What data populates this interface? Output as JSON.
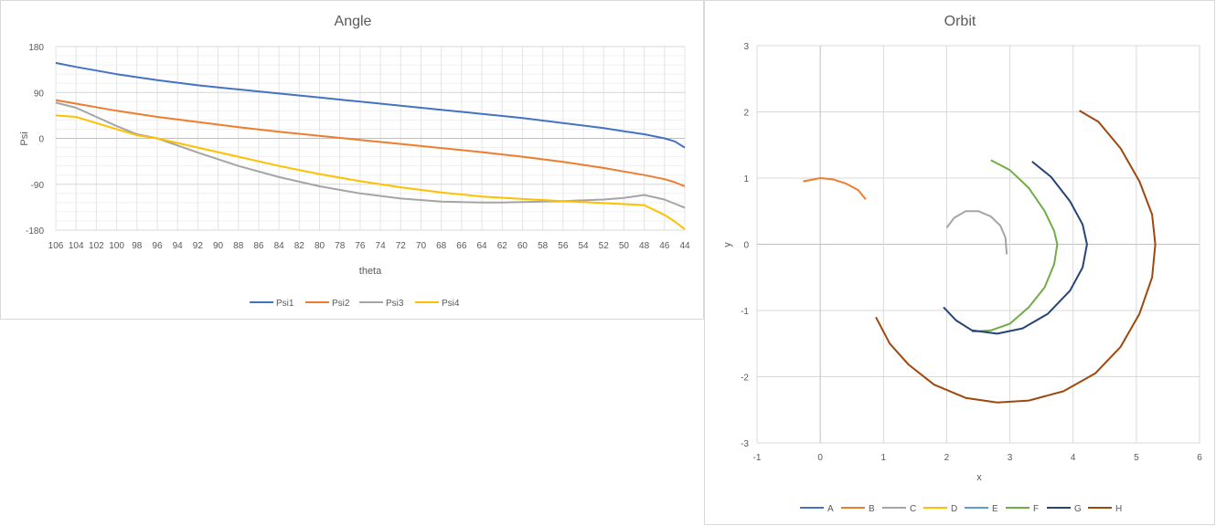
{
  "chart_data": [
    {
      "type": "line",
      "title": "Angle",
      "xlabel": "theta",
      "ylabel": "Psi",
      "x_reversed": true,
      "xlim": [
        106,
        44
      ],
      "ylim": [
        -180,
        180
      ],
      "y_ticks": [
        180,
        90,
        0,
        -90,
        -180
      ],
      "x_ticks": [
        106,
        104,
        102,
        100,
        98,
        96,
        94,
        92,
        90,
        88,
        86,
        84,
        82,
        80,
        78,
        76,
        74,
        72,
        70,
        68,
        66,
        64,
        62,
        60,
        58,
        56,
        54,
        52,
        50,
        48,
        46,
        44
      ],
      "grid": "major and minor",
      "legend": "bottom",
      "series": [
        {
          "name": "Psi1",
          "color": "#4472C4",
          "x": [
            106,
            104,
            100,
            96,
            92,
            88,
            84,
            80,
            76,
            72,
            68,
            64,
            60,
            56,
            52,
            50,
            48,
            46,
            45,
            44
          ],
          "y": [
            148,
            140,
            126,
            114,
            104,
            96,
            88,
            80,
            72,
            64,
            56,
            48,
            40,
            30,
            20,
            14,
            8,
            0,
            -6,
            -18
          ]
        },
        {
          "name": "Psi2",
          "color": "#ED7D31",
          "x": [
            106,
            104,
            100,
            96,
            92,
            88,
            84,
            80,
            76,
            72,
            68,
            64,
            60,
            56,
            52,
            50,
            48,
            46,
            45,
            44
          ],
          "y": [
            75,
            68,
            54,
            42,
            32,
            22,
            13,
            5,
            -3,
            -11,
            -19,
            -27,
            -36,
            -46,
            -58,
            -65,
            -72,
            -80,
            -86,
            -94
          ]
        },
        {
          "name": "Psi3",
          "color": "#A5A5A5",
          "x": [
            106,
            104,
            102,
            100,
            98,
            96,
            92,
            88,
            84,
            80,
            76,
            72,
            68,
            64,
            62,
            60,
            56,
            52,
            50,
            48,
            46,
            45,
            44
          ],
          "y": [
            70,
            60,
            42,
            24,
            8,
            0,
            -28,
            -54,
            -76,
            -94,
            -108,
            -118,
            -124,
            -126,
            -126,
            -125,
            -123,
            -120,
            -117,
            -111,
            -120,
            -128,
            -136
          ]
        },
        {
          "name": "Psi4",
          "color": "#FFC000",
          "x": [
            106,
            104,
            102,
            100,
            98,
            96,
            92,
            88,
            84,
            80,
            76,
            72,
            68,
            64,
            60,
            56,
            52,
            50,
            48,
            46,
            45,
            44
          ],
          "y": [
            45,
            42,
            30,
            18,
            6,
            0,
            -18,
            -36,
            -54,
            -70,
            -84,
            -96,
            -106,
            -114,
            -119,
            -123,
            -127,
            -129,
            -131,
            -150,
            -163,
            -178
          ]
        }
      ]
    },
    {
      "type": "scatter",
      "title": "Orbit",
      "xlabel": "x",
      "ylabel": "y",
      "xlim": [
        -1,
        6
      ],
      "ylim": [
        -3,
        3
      ],
      "x_ticks": [
        -1,
        0,
        1,
        2,
        3,
        4,
        5,
        6
      ],
      "y_ticks": [
        3,
        2,
        1,
        0,
        -1,
        -2,
        -3
      ],
      "grid": "major",
      "legend": "bottom",
      "series": [
        {
          "name": "A",
          "color": "#4472C4",
          "x": [],
          "y": []
        },
        {
          "name": "B",
          "color": "#ED7D31",
          "x": [
            -0.27,
            -0.1,
            0.0,
            0.2,
            0.4,
            0.6,
            0.72
          ],
          "y": [
            0.95,
            0.98,
            1.0,
            0.98,
            0.92,
            0.82,
            0.68
          ]
        },
        {
          "name": "C",
          "color": "#A5A5A5",
          "x": [
            2.0,
            2.12,
            2.3,
            2.5,
            2.7,
            2.85,
            2.93,
            2.95
          ],
          "y": [
            0.25,
            0.4,
            0.5,
            0.5,
            0.42,
            0.28,
            0.1,
            -0.15
          ]
        },
        {
          "name": "D",
          "color": "#FFC000",
          "x": [],
          "y": []
        },
        {
          "name": "E",
          "color": "#5B9BD5",
          "x": [],
          "y": []
        },
        {
          "name": "F",
          "color": "#70AD47",
          "x": [
            2.7,
            3.0,
            3.3,
            3.55,
            3.7,
            3.75,
            3.7,
            3.55,
            3.3,
            3.0,
            2.7,
            2.4
          ],
          "y": [
            1.27,
            1.12,
            0.85,
            0.5,
            0.2,
            0.0,
            -0.3,
            -0.65,
            -0.95,
            -1.2,
            -1.3,
            -1.32
          ]
        },
        {
          "name": "G",
          "color": "#264478",
          "x": [
            3.35,
            3.65,
            3.95,
            4.15,
            4.22,
            4.15,
            3.95,
            3.6,
            3.2,
            2.8,
            2.4,
            2.15,
            1.95
          ],
          "y": [
            1.25,
            1.02,
            0.65,
            0.3,
            0.0,
            -0.35,
            -0.7,
            -1.05,
            -1.27,
            -1.35,
            -1.3,
            -1.15,
            -0.95
          ]
        },
        {
          "name": "H",
          "color": "#9E480E",
          "x": [
            4.1,
            4.4,
            4.75,
            5.05,
            5.25,
            5.3,
            5.25,
            5.05,
            4.75,
            4.35,
            3.85,
            3.3,
            2.8,
            2.3,
            1.8,
            1.4,
            1.1,
            0.88
          ],
          "y": [
            2.02,
            1.85,
            1.45,
            0.95,
            0.45,
            0.0,
            -0.5,
            -1.05,
            -1.55,
            -1.95,
            -2.22,
            -2.36,
            -2.39,
            -2.32,
            -2.12,
            -1.82,
            -1.5,
            -1.1
          ]
        }
      ]
    }
  ]
}
